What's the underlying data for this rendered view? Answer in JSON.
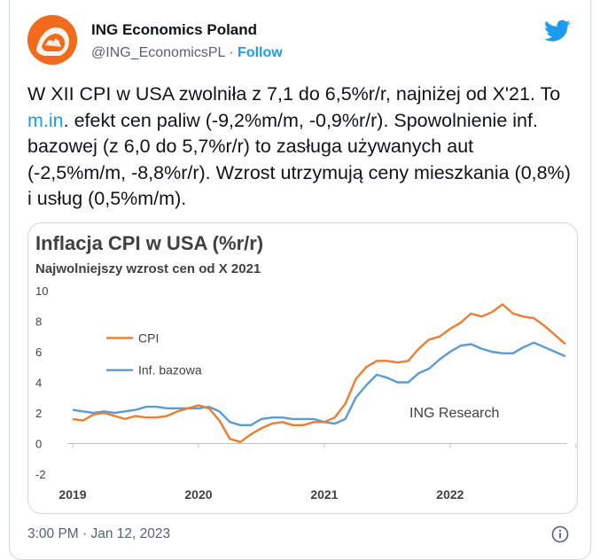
{
  "author": {
    "name": "ING Economics Poland",
    "handle": "@ING_EconomicsPL",
    "separator": "·",
    "follow_label": "Follow"
  },
  "icons": {
    "platform": "twitter-bird-icon",
    "info": "info-icon",
    "avatar": "ing-lion-logo"
  },
  "colors": {
    "accent": "#1d9bf0",
    "cpi": "#ed7d31",
    "core": "#5b9bd5",
    "brand": "#f26b1d"
  },
  "tweet": {
    "text_before_link": "W XII CPI w USA zwolniła z 7,1 do 6,5%r/r, najniżej od X'21. To ",
    "link_text": "m.in",
    "text_after_link": ". efekt cen paliw (-9,2%m/m, -0,9%r/r). Spowolnienie inf. bazowej (z 6,0 do 5,7%r/r) to zasługa używanych aut (-2,5%m/m, -8,8%r/r). Wzrost utrzymują ceny mieszkania (0,8%) i usług (0,5%m/m).",
    "timestamp": "3:00 PM · Jan 12, 2023"
  },
  "chart_data": {
    "type": "line",
    "title": "Inflacja CPI w USA (%r/r)",
    "subtitle": "Najwolniejszy wzrost cen od X 2021",
    "annotation": "ING Research",
    "ylim": [
      -2,
      10
    ],
    "yticks": [
      "10",
      "8",
      "6",
      "4",
      "2",
      "0",
      "-2"
    ],
    "x_start": "2019-01",
    "x_end": "2022-12",
    "x_tick_labels": [
      "2019",
      "2020",
      "2021",
      "2022"
    ],
    "grid": false,
    "legend": "inside-left",
    "series": [
      {
        "name": "CPI",
        "values": [
          1.6,
          1.5,
          1.9,
          2.0,
          1.8,
          1.6,
          1.8,
          1.7,
          1.7,
          1.8,
          2.1,
          2.3,
          2.5,
          2.3,
          1.5,
          0.3,
          0.1,
          0.6,
          1.0,
          1.3,
          1.4,
          1.2,
          1.2,
          1.4,
          1.4,
          1.7,
          2.6,
          4.2,
          5.0,
          5.4,
          5.4,
          5.3,
          5.4,
          6.2,
          6.8,
          7.0,
          7.5,
          7.9,
          8.5,
          8.3,
          8.6,
          9.1,
          8.5,
          8.3,
          8.2,
          7.7,
          7.1,
          6.5
        ]
      },
      {
        "name": "Inf. bazowa",
        "values": [
          2.2,
          2.1,
          2.0,
          2.1,
          2.0,
          2.1,
          2.2,
          2.4,
          2.4,
          2.3,
          2.3,
          2.3,
          2.3,
          2.4,
          2.1,
          1.4,
          1.2,
          1.2,
          1.6,
          1.7,
          1.7,
          1.6,
          1.6,
          1.6,
          1.4,
          1.3,
          1.6,
          3.0,
          3.8,
          4.5,
          4.3,
          4.0,
          4.0,
          4.6,
          4.9,
          5.5,
          6.0,
          6.4,
          6.5,
          6.2,
          6.0,
          5.9,
          5.9,
          6.3,
          6.6,
          6.3,
          6.0,
          5.7
        ]
      }
    ]
  }
}
